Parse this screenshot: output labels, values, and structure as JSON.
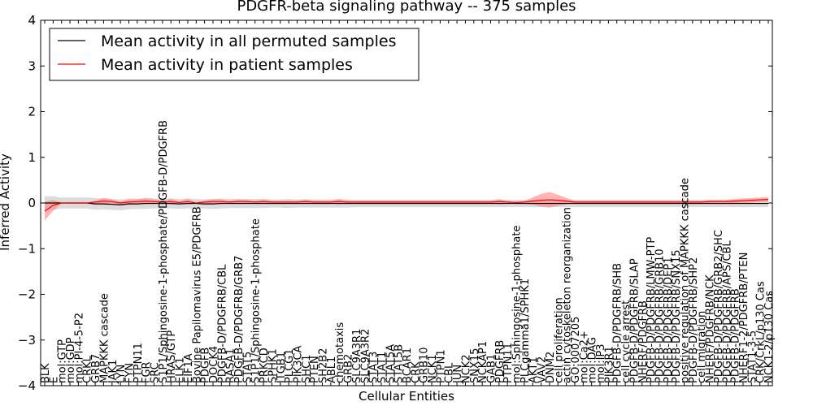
{
  "chart_data": {
    "type": "line",
    "title": "PDGFR-beta signaling pathway -- 375 samples",
    "xlabel": "Cellular Entities",
    "ylabel": "Inferred Activity",
    "ylim": [
      -4,
      4
    ],
    "yticks": [
      -4,
      -3,
      -2,
      -1,
      0,
      1,
      2,
      3,
      4
    ],
    "legend_position": "top-left",
    "grid": false,
    "colors": {
      "permuted": "#000000",
      "patient": "#ff0000",
      "permuted_band": "#c0c0c0",
      "patient_band": "#ff8080"
    },
    "categories": [
      "BLK",
      "E",
      "mol:GTP",
      "mol:GDP",
      "mol:PI-4-5-P2",
      "CRKL",
      "GRB7",
      "MAPKKK cascade",
      "JAK1",
      "LYN",
      "FYN",
      "PTPN11",
      "FGR",
      "SRC",
      "S1P1/Sphingosine-1-phosphate/PDGFB-D/PDGFRB",
      "HRAS/GTP",
      "ELK1",
      "EIF1A",
      "Bovine Papilomavirus E5/PDGFRB",
      "PDGFB",
      "DOCK4",
      "PDGFB-D/PDGFRB/CBL",
      "RASA1",
      "PDGFB-D/PDGFRB/GRB7",
      "STAT5",
      "S1P1/Sphingosine-1-phosphate",
      "PRKCD",
      "SPHK1",
      "ITGB1",
      "PLCG1",
      "PIK3CA",
      "SHC1",
      "PTEN",
      "SH2B2",
      "ABL1",
      "chemotaxis",
      "GRB2",
      "SLC9A3R1",
      "SLC9A3R2",
      "STAT3",
      "STAT1",
      "STAT5A",
      "STAT5B",
      "BCAR1",
      "CRK",
      "GRB10",
      "NCK1",
      "PTPN1",
      "CBL",
      "JUN",
      "NCK2",
      "SNX15",
      "NCKAP1",
      "GAB1",
      "PDGFRB",
      "PTPN11",
      "mol:Sphingosine-1-phosphate",
      "PLCgamma1/SPHK1",
      "AKT1",
      "VAV2",
      "DNM2",
      "cell proliferation",
      "actin cytoskeleton reorganization",
      "GO:0007205",
      "mol:Ca2+",
      "mol:DAG",
      "mol:IP3",
      "PIK3R1",
      "PDGFB-D/PDGFRB/SHB",
      "cell cycle arrest",
      "PDGFB-D/PDGFRB/SLAP",
      "NHERF/PDGFRB",
      "PDGFB-D/PDGFRB/LMW-PTP",
      "PDGFB-D/PDGFRB/GRB10",
      "PDGFB-D/PDGFRB/DEP1",
      "PDGFB-D/PDGFRB/SNX15",
      "positive regulation of MAPKKK cascade",
      "PDGFB-D/PDGFRB/SHP2",
      "cell migration",
      "NHERF/PDGFRB/NCK",
      "PDGFB-D/PDGFRB/GRB2/SHC",
      "PDGFB-D/PDGFRB/APS/CBL",
      "PDGFB-D/PDGFRB",
      "NHERF1-2/PDGFRB/PTEN",
      "STAT1-3-5",
      "CRK/CrkL/p130 Cas",
      "NCK1-2/p130 Cas"
    ],
    "series": [
      {
        "name": "Mean activity in all permuted samples",
        "values": [
          0,
          0,
          0,
          0,
          0,
          0,
          -0.02,
          -0.02,
          -0.03,
          -0.04,
          -0.02,
          -0.02,
          -0.01,
          -0.01,
          -0.01,
          -0.01,
          -0.02,
          -0.01,
          -0.01,
          -0.02,
          -0.02,
          -0.01,
          -0.01,
          -0.01,
          -0.01,
          -0.01,
          -0.01,
          -0.01,
          -0.01,
          -0.01,
          -0.01,
          -0.01,
          -0.01,
          -0.01,
          -0.01,
          -0.01,
          -0.01,
          -0.01,
          -0.01,
          -0.01,
          -0.01,
          -0.01,
          -0.01,
          -0.01,
          -0.01,
          -0.01,
          -0.01,
          -0.01,
          -0.01,
          -0.01,
          -0.01,
          -0.01,
          -0.01,
          -0.01,
          -0.01,
          -0.01,
          -0.01,
          -0.01,
          -0.01,
          -0.01,
          -0.01,
          -0.01,
          -0.01,
          -0.01,
          -0.01,
          -0.01,
          -0.01,
          -0.01,
          -0.01,
          -0.01,
          -0.01,
          -0.01,
          -0.01,
          -0.01,
          -0.01,
          -0.01,
          -0.01,
          -0.01,
          -0.01,
          -0.01,
          -0.01,
          -0.01,
          -0.01,
          -0.01,
          -0.01,
          -0.01,
          -0.01
        ],
        "band": [
          0.15,
          0.15,
          0.12,
          0.12,
          0.12,
          0.12,
          0.13,
          0.12,
          0.12,
          0.12,
          0.12,
          0.11,
          0.12,
          0.11,
          0.11,
          0.11,
          0.11,
          0.11,
          0.1,
          0.1,
          0.11,
          0.11,
          0.1,
          0.1,
          0.1,
          0.1,
          0.1,
          0.09,
          0.09,
          0.1,
          0.09,
          0.09,
          0.09,
          0.09,
          0.09,
          0.09,
          0.09,
          0.08,
          0.08,
          0.08,
          0.08,
          0.08,
          0.08,
          0.08,
          0.08,
          0.08,
          0.08,
          0.08,
          0.08,
          0.08,
          0.08,
          0.08,
          0.08,
          0.08,
          0.08,
          0.08,
          0.08,
          0.08,
          0.08,
          0.08,
          0.08,
          0.08,
          0.08,
          0.08,
          0.08,
          0.08,
          0.08,
          0.08,
          0.08,
          0.08,
          0.08,
          0.08,
          0.08,
          0.08,
          0.08,
          0.08,
          0.08,
          0.08,
          0.08,
          0.08,
          0.08,
          0.08,
          0.08,
          0.08,
          0.08,
          0.08,
          0.08
        ]
      },
      {
        "name": "Mean activity in patient samples",
        "values": [
          -0.18,
          -0.05,
          0,
          0,
          0,
          0,
          0.02,
          0.04,
          0.03,
          0.0,
          0.02,
          0.03,
          0.04,
          0.03,
          0.02,
          0.03,
          0.01,
          0.03,
          0.0,
          0.02,
          0.03,
          0.03,
          0.02,
          0.03,
          0.03,
          0.02,
          0.03,
          0.02,
          0.02,
          0.02,
          0.02,
          0.03,
          0.02,
          0.02,
          0.02,
          0.03,
          0.02,
          0.02,
          0.02,
          0.02,
          0.02,
          0.02,
          0.02,
          0.02,
          0.02,
          0.02,
          0.02,
          0.02,
          0.02,
          0.02,
          0.02,
          0.02,
          0.02,
          0.02,
          0.03,
          0.02,
          0.01,
          0.02,
          0.04,
          0.06,
          0.07,
          0.06,
          0.04,
          0.02,
          0.02,
          0.02,
          0.02,
          0.02,
          0.02,
          0.02,
          0.02,
          0.02,
          0.02,
          0.02,
          0.02,
          0.02,
          0.02,
          0.02,
          0.02,
          0.03,
          0.03,
          0.03,
          0.04,
          0.05,
          0.06,
          0.07,
          0.08
        ],
        "band": [
          0.2,
          0.12,
          0.01,
          0.01,
          0.01,
          0.01,
          0.03,
          0.07,
          0.05,
          0.03,
          0.06,
          0.05,
          0.06,
          0.05,
          0.04,
          0.06,
          0.03,
          0.06,
          0.01,
          0.04,
          0.05,
          0.05,
          0.03,
          0.05,
          0.04,
          0.03,
          0.05,
          0.03,
          0.03,
          0.03,
          0.03,
          0.05,
          0.03,
          0.03,
          0.03,
          0.06,
          0.03,
          0.03,
          0.03,
          0.03,
          0.03,
          0.03,
          0.03,
          0.03,
          0.03,
          0.03,
          0.03,
          0.03,
          0.03,
          0.03,
          0.03,
          0.03,
          0.03,
          0.03,
          0.06,
          0.03,
          0.02,
          0.03,
          0.08,
          0.14,
          0.17,
          0.12,
          0.07,
          0.03,
          0.03,
          0.03,
          0.03,
          0.03,
          0.03,
          0.03,
          0.03,
          0.03,
          0.03,
          0.03,
          0.03,
          0.03,
          0.03,
          0.03,
          0.03,
          0.04,
          0.04,
          0.04,
          0.05,
          0.05,
          0.05,
          0.05,
          0.05
        ]
      }
    ]
  }
}
